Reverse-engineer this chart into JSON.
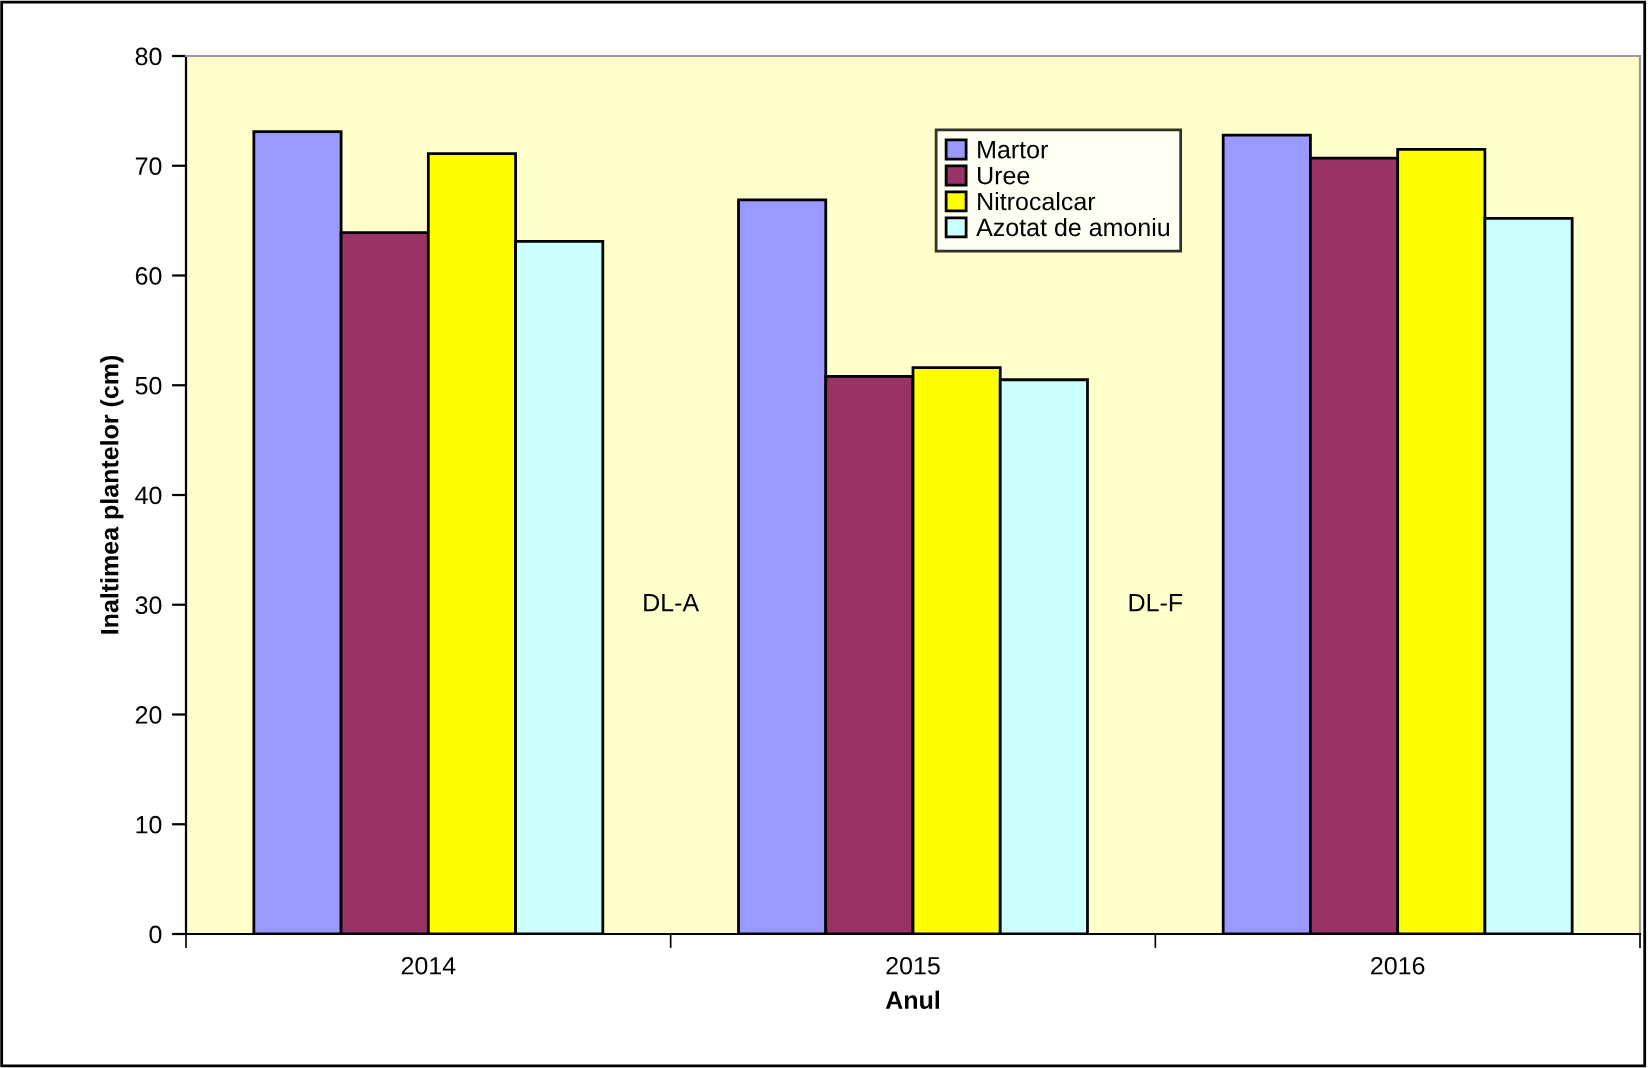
{
  "chart_data": {
    "type": "bar",
    "xlabel": "Anul",
    "ylabel": "Inaltimea plantelor (cm)",
    "categories": [
      "2014",
      "2015",
      "2016"
    ],
    "series": [
      {
        "name": "Martor",
        "color": "#9999ff",
        "values": [
          73.1,
          66.9,
          72.8
        ]
      },
      {
        "name": "Uree",
        "color": "#993366",
        "values": [
          63.9,
          50.8,
          70.7
        ]
      },
      {
        "name": "Nitrocalcar",
        "color": "#ffff00",
        "values": [
          71.1,
          51.6,
          71.5
        ]
      },
      {
        "name": "Azotat de amoniu",
        "color": "#ccffff",
        "values": [
          63.1,
          50.5,
          65.2
        ]
      }
    ],
    "annotations": [
      "DL-A",
      "DL-F"
    ],
    "ylim": [
      0,
      80
    ],
    "yticks": [
      0,
      10,
      20,
      30,
      40,
      50,
      60,
      70,
      80
    ],
    "grid": false,
    "legend": "top"
  }
}
